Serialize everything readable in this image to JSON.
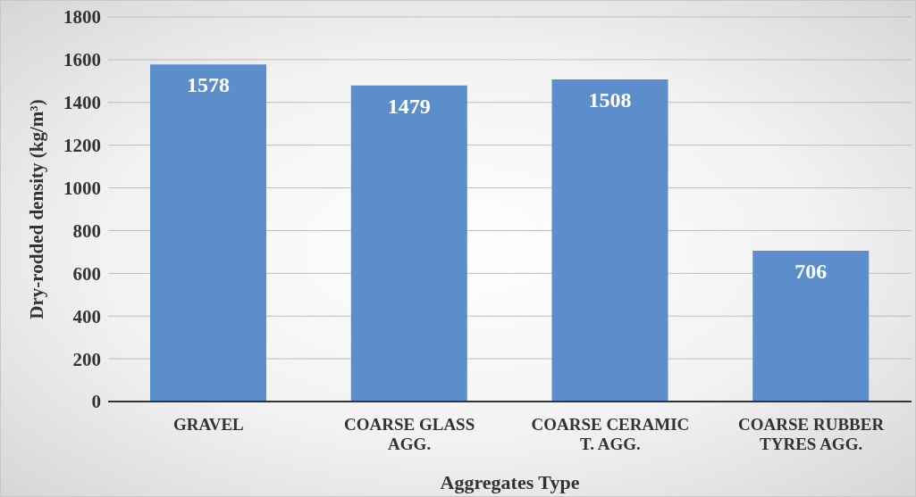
{
  "chart_data": {
    "type": "bar",
    "xlabel": "Aggregates Type",
    "ylabel": "Dry-rodded density (kg/m³)",
    "categories": [
      "GRAVEL",
      "COARSE GLASS AGG.",
      "COARSE CERAMIC T. AGG.",
      "COARSE RUBBER TYRES AGG."
    ],
    "values": [
      1578,
      1479,
      1508,
      706
    ],
    "color": "#5b8ecb",
    "ylim": [
      0,
      1800
    ],
    "yticks": [
      0,
      200,
      400,
      600,
      800,
      1000,
      1200,
      1400,
      1600,
      1800
    ],
    "grid": "y",
    "data_labels": true
  }
}
